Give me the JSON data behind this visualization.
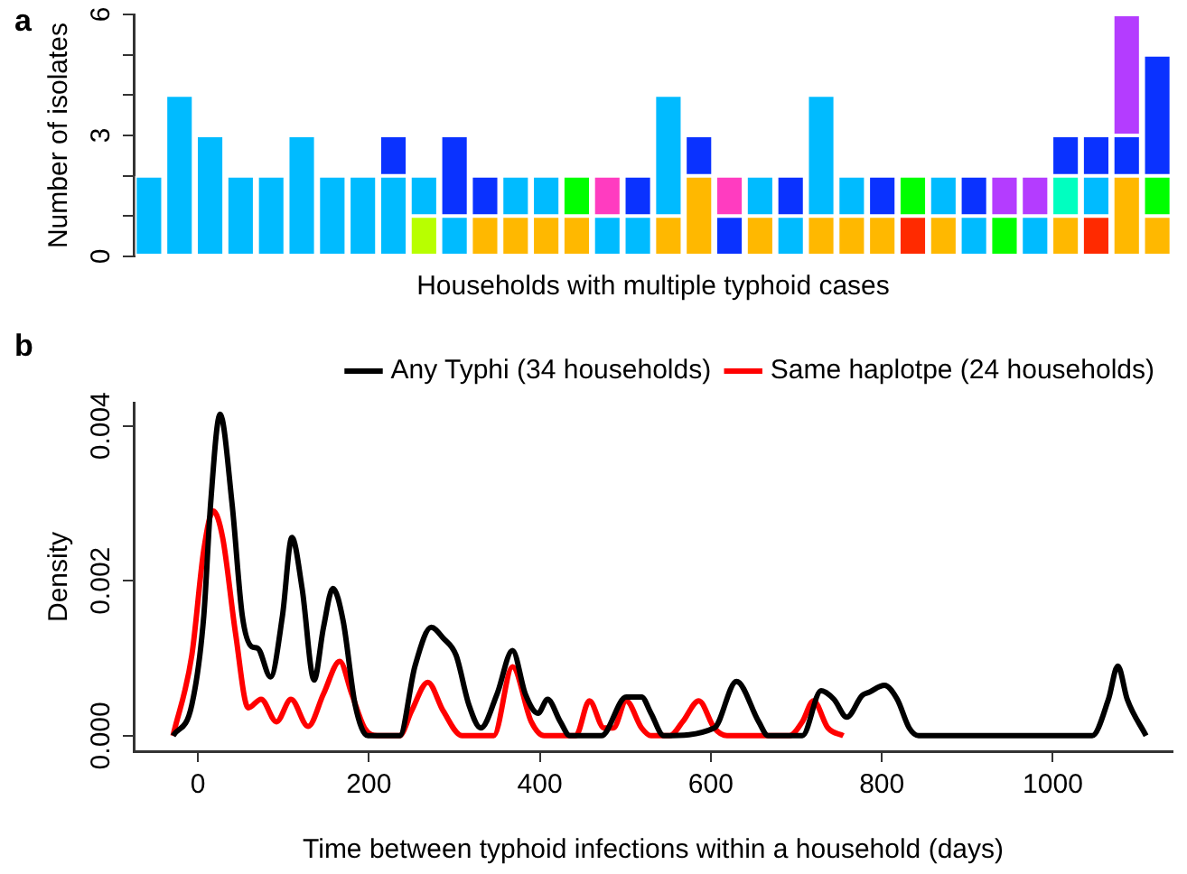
{
  "chart_data": [
    {
      "type": "bar",
      "stacked": true,
      "xlabel": "Households with multiple typhoid cases",
      "ylabel": "Number of isolates",
      "annotations": [
        "a"
      ],
      "categories": [
        null,
        null,
        null,
        null,
        null,
        null,
        null,
        null,
        null,
        null,
        null,
        null,
        null,
        null,
        null,
        null,
        null,
        null,
        null,
        null,
        null,
        null,
        null,
        null,
        null,
        null,
        null,
        null,
        null,
        null,
        null,
        null,
        null,
        null
      ],
      "ylim": [
        0,
        6
      ],
      "yticks": [
        0,
        {
          "value": 1,
          "label": null
        },
        {
          "value": 2,
          "label": null
        },
        3,
        {
          "value": 4,
          "label": null
        },
        {
          "value": 5,
          "label": null
        },
        6
      ],
      "grid": false,
      "legend": false,
      "series": [
        {
          "values": [
            2,
            4,
            3,
            2,
            2,
            3,
            2,
            2,
            2,
            1,
            1,
            1,
            1,
            1,
            1,
            1,
            1,
            1,
            2,
            1,
            1,
            1,
            1,
            1,
            1,
            1,
            1,
            1,
            1,
            1,
            1,
            1,
            2,
            1
          ],
          "colors": [
            "#00bbff",
            "#00bbff",
            "#00bbff",
            "#00bbff",
            "#00bbff",
            "#00bbff",
            "#00bbff",
            "#00bbff",
            "#00bbff",
            "#b8ff00",
            "#00bbff",
            "#ffb800",
            "#ffb800",
            "#ffb800",
            "#ffb800",
            "#00bbff",
            "#00bbff",
            "#ffb800",
            "#ffb800",
            "#0a32ff",
            "#ffb800",
            "#00bbff",
            "#ffb800",
            "#ffb800",
            "#ffb800",
            "#ff2a00",
            "#ffb800",
            "#00bbff",
            "#00ff00",
            "#00bbff",
            "#ffb800",
            "#ff2a00",
            "#ffb800",
            "#ffb800"
          ]
        },
        {
          "values": [
            null,
            null,
            null,
            null,
            null,
            null,
            null,
            null,
            1,
            1,
            2,
            1,
            1,
            1,
            1,
            1,
            1,
            3,
            1,
            1,
            1,
            1,
            3,
            1,
            1,
            1,
            1,
            1,
            1,
            1,
            1,
            1,
            1,
            1
          ],
          "colors": [
            null,
            null,
            null,
            null,
            null,
            null,
            null,
            null,
            "#0a32ff",
            "#00bbff",
            "#0a32ff",
            "#0a32ff",
            "#00bbff",
            "#00bbff",
            "#00ff00",
            "#ff3cc0",
            "#0a32ff",
            "#00bbff",
            "#0a32ff",
            "#ff3cc0",
            "#00bbff",
            "#0a32ff",
            "#00bbff",
            "#00bbff",
            "#0a32ff",
            "#00ff00",
            "#00bbff",
            "#0a32ff",
            "#b43cff",
            "#b43cff",
            "#00ffc0",
            "#00bbff",
            "#0a32ff",
            "#00ff00"
          ]
        },
        {
          "values": [
            null,
            null,
            null,
            null,
            null,
            null,
            null,
            null,
            null,
            null,
            null,
            null,
            null,
            null,
            null,
            null,
            null,
            null,
            null,
            null,
            null,
            null,
            null,
            null,
            null,
            null,
            null,
            null,
            null,
            null,
            1,
            1,
            3,
            3
          ],
          "colors": [
            null,
            null,
            null,
            null,
            null,
            null,
            null,
            null,
            null,
            null,
            null,
            null,
            null,
            null,
            null,
            null,
            null,
            null,
            null,
            null,
            null,
            null,
            null,
            null,
            null,
            null,
            null,
            null,
            null,
            null,
            "#0a32ff",
            "#0a32ff",
            "#b43cff",
            "#0a32ff"
          ]
        }
      ]
    },
    {
      "type": "line",
      "xlabel": "Time between typhoid infections within a household (days)",
      "ylabel": "Density",
      "annotations": [
        "b"
      ],
      "xlim": [
        -75,
        1140
      ],
      "xticks": [
        0,
        200,
        400,
        600,
        800,
        1000
      ],
      "ylim": [
        -0.0002,
        0.0043
      ],
      "yticks": [
        {
          "value": 0,
          "label": "0.000"
        },
        {
          "value": 0.002,
          "label": "0.002"
        },
        {
          "value": 0.004,
          "label": "0.004"
        }
      ],
      "grid": false,
      "legend": "top right",
      "marker": "none",
      "line_style": "solid",
      "series": [
        {
          "name": "Any Typhi (34 households)",
          "color": "#000000",
          "x": [
            -29,
            -7,
            7,
            15,
            26,
            40,
            52,
            63,
            70,
            85,
            99,
            110,
            122,
            136,
            147,
            158,
            170,
            184,
            199,
            236,
            254,
            273,
            287,
            302,
            317,
            331,
            350,
            368,
            383,
            398,
            409,
            424,
            435,
            472,
            501,
            519,
            530,
            545,
            604,
            630,
            656,
            667,
            707,
            729,
            744,
            759,
            777,
            785,
            803,
            818,
            832,
            843,
            1046,
            1065,
            1076,
            1087,
            1109
          ],
          "values": [
            0,
            0.0004,
            0.00155,
            0.003,
            0.00415,
            0.003,
            0.00155,
            0.00115,
            0.00113,
            0.00076,
            0.00155,
            0.00256,
            0.0019,
            0.00072,
            0.0014,
            0.0019,
            0.00148,
            0.0004,
            0,
            0,
            0.0009,
            0.0014,
            0.00126,
            0.00104,
            0.0004,
            0.0001,
            0.00054,
            0.0011,
            0.00054,
            0.00029,
            0.00047,
            0.00018,
            0,
            0,
            0.0005,
            0.0005,
            0.00029,
            0,
            0.0001,
            0.0007,
            0.00018,
            0,
            0,
            0.00058,
            0.00047,
            0.00024,
            0.00052,
            0.00056,
            0.00065,
            0.00047,
            0.0001,
            0,
            0,
            0.00047,
            0.0009,
            0.00047,
            0
          ]
        },
        {
          "name": "Same haplotpe (24 households)",
          "color": "#ff0000",
          "x": [
            -29,
            -7,
            7,
            18,
            29,
            44,
            59,
            74,
            92,
            109,
            129,
            147,
            166,
            180,
            195,
            210,
            236,
            250,
            269,
            287,
            309,
            346,
            368,
            390,
            405,
            442,
            458,
            475,
            486,
            501,
            519,
            530,
            552,
            567,
            586,
            604,
            619,
            692,
            707,
            720,
            737,
            755
          ],
          "values": [
            0,
            0.00104,
            0.0024,
            0.0029,
            0.00256,
            0.00133,
            0.00036,
            0.00047,
            0.00018,
            0.00047,
            0.00012,
            0.00054,
            0.00096,
            0.00054,
            0.0001,
            0,
            0,
            0.00032,
            0.00069,
            0.00032,
            0,
            0,
            0.00089,
            0.00018,
            0,
            0,
            0.00045,
            0.0001,
            0.0001,
            0.00045,
            0.0001,
            0,
            0,
            0.00018,
            0.00045,
            0.0001,
            0,
            0,
            0.00018,
            0.00045,
            0.0001,
            0
          ]
        }
      ]
    }
  ]
}
